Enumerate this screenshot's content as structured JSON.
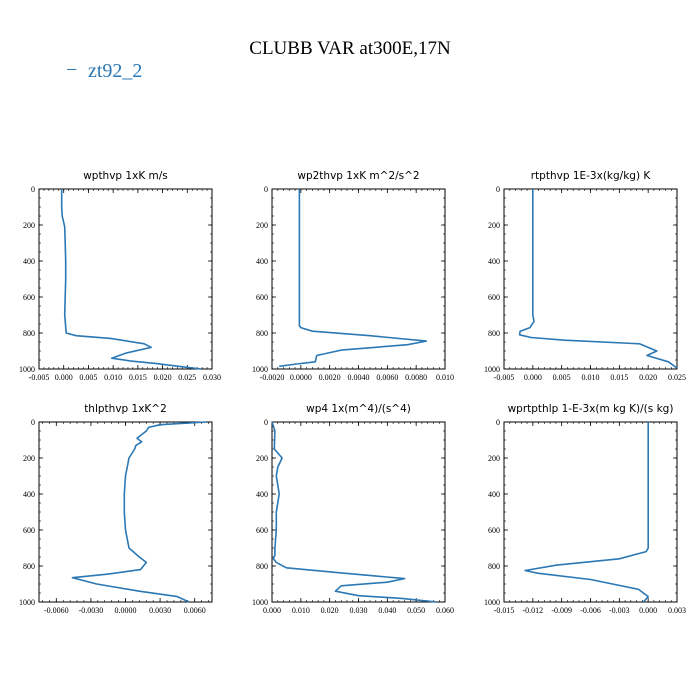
{
  "figure": {
    "title": "CLUBB VAR at300E,17N",
    "legend_label": "zt92_2",
    "legend_color": "#2b78b4"
  },
  "chart_data": [
    {
      "type": "line",
      "title": "wpthvp  1xK m/s",
      "xlim": [
        -0.005,
        0.03
      ],
      "ylim": [
        1000,
        0
      ],
      "xticks": [
        -0.005,
        0.0,
        0.005,
        0.01,
        0.015,
        0.02,
        0.025,
        0.03
      ],
      "xtick_labels": [
        "-0.005",
        "0.000",
        "0.005",
        "0.010",
        "0.015",
        "0.020",
        "0.025",
        "0.030"
      ],
      "yticks": [
        0,
        200,
        400,
        600,
        800,
        1000
      ],
      "ytick_labels": [
        "0",
        "200",
        "400",
        "600",
        "800",
        "1000"
      ],
      "series": [
        {
          "name": "zt92_2",
          "x": [
            -0.0004,
            -0.0004,
            -0.0003,
            0.0002,
            0.0003,
            0.0004,
            0.0004,
            0.0003,
            0.0002,
            0.0005,
            0.0025,
            0.0095,
            0.0163,
            0.0177,
            0.0128,
            0.0097,
            0.0134,
            0.0188,
            0.0232,
            0.0278
          ],
          "y": [
            0,
            100,
            150,
            210,
            300,
            400,
            500,
            600,
            700,
            800,
            815,
            830,
            860,
            880,
            910,
            940,
            955,
            970,
            985,
            1000
          ]
        }
      ]
    },
    {
      "type": "line",
      "title": "wp2thvp  1xK m^2/s^2",
      "xlim": [
        -0.002,
        0.01
      ],
      "ylim": [
        1000,
        0
      ],
      "xticks": [
        -0.002,
        0.0,
        0.002,
        0.004,
        0.006,
        0.008,
        0.01
      ],
      "xtick_labels": [
        "-0.0020",
        "0.0000",
        "0.0020",
        "0.0040",
        "0.0060",
        "0.0080",
        "0.010"
      ],
      "yticks": [
        0,
        200,
        400,
        600,
        800,
        1000
      ],
      "ytick_labels": [
        "0",
        "200",
        "400",
        "600",
        "800",
        "1000"
      ],
      "series": [
        {
          "name": "zt92_2",
          "x": [
            -0.0001,
            -0.0001,
            -0.0001,
            -0.0001,
            -0.0001,
            -0.0001,
            -0.0001,
            0.0,
            0.0008,
            0.0048,
            0.0087,
            0.0074,
            0.0028,
            0.0011,
            0.001,
            -0.0003,
            -0.0015
          ],
          "y": [
            0,
            200,
            400,
            600,
            700,
            740,
            760,
            770,
            790,
            815,
            845,
            865,
            895,
            925,
            960,
            972,
            985
          ]
        }
      ]
    },
    {
      "type": "line",
      "title": "rtpthvp  1E-3x(kg/kg) K",
      "xlim": [
        -0.005,
        0.025
      ],
      "ylim": [
        1000,
        0
      ],
      "xticks": [
        -0.005,
        0.0,
        0.005,
        0.01,
        0.015,
        0.02,
        0.025
      ],
      "xtick_labels": [
        "-0.005",
        "0.000",
        "0.005",
        "0.010",
        "0.015",
        "0.020",
        "0.025"
      ],
      "yticks": [
        0,
        200,
        400,
        600,
        800,
        1000
      ],
      "ytick_labels": [
        "0",
        "200",
        "400",
        "600",
        "800",
        "1000"
      ],
      "series": [
        {
          "name": "zt92_2",
          "x": [
            0.0,
            0.0,
            0.0,
            0.0,
            0.0,
            0.0002,
            -0.0005,
            -0.0022,
            -0.0023,
            -0.0003,
            0.0055,
            0.0185,
            0.0215,
            0.0198,
            0.0235,
            0.025
          ],
          "y": [
            0,
            200,
            400,
            600,
            700,
            735,
            770,
            790,
            810,
            825,
            840,
            860,
            900,
            925,
            960,
            995
          ]
        }
      ]
    },
    {
      "type": "line",
      "title": "thlpthvp  1xK^2",
      "xlim": [
        -0.0075,
        0.0075
      ],
      "ylim": [
        1000,
        0
      ],
      "xticks": [
        -0.006,
        -0.003,
        0.0,
        0.003,
        0.006
      ],
      "xtick_labels": [
        "-0.0060",
        "-0.0030",
        "0.0000",
        "0.0030",
        "0.0060"
      ],
      "yticks": [
        0,
        200,
        400,
        600,
        800,
        1000
      ],
      "ytick_labels": [
        "0",
        "200",
        "400",
        "600",
        "800",
        "1000"
      ],
      "series": [
        {
          "name": "zt92_2",
          "x": [
            0.007,
            0.003,
            0.002,
            0.0018,
            0.001,
            0.0014,
            0.0009,
            0.0008,
            0.0003,
            0.0,
            -0.0001,
            -0.0001,
            0.0,
            0.0003,
            0.0012,
            0.0018,
            0.0013,
            -0.0015,
            -0.0046,
            -0.0025,
            0.0012,
            0.0045,
            0.0055
          ],
          "y": [
            0,
            15,
            30,
            50,
            90,
            110,
            130,
            150,
            200,
            300,
            400,
            500,
            600,
            700,
            750,
            780,
            820,
            845,
            865,
            900,
            940,
            970,
            1000
          ]
        }
      ]
    },
    {
      "type": "line",
      "title": "wp4  1x(m^4)/(s^4)",
      "xlim": [
        0.0,
        0.06
      ],
      "ylim": [
        1000,
        0
      ],
      "xticks": [
        0.0,
        0.01,
        0.02,
        0.03,
        0.04,
        0.05,
        0.06
      ],
      "xtick_labels": [
        "0.000",
        "0.010",
        "0.020",
        "0.030",
        "0.040",
        "0.050",
        "0.060"
      ],
      "yticks": [
        0,
        200,
        400,
        600,
        800,
        1000
      ],
      "ytick_labels": [
        "0",
        "200",
        "400",
        "600",
        "800",
        "1000"
      ],
      "series": [
        {
          "name": "zt92_2",
          "x": [
            0.0,
            0.001,
            0.0008,
            0.0035,
            0.002,
            0.0015,
            0.0025,
            0.0015,
            0.0015,
            0.001,
            0.001,
            0.0005,
            0.0015,
            0.005,
            0.025,
            0.046,
            0.04,
            0.024,
            0.022,
            0.03,
            0.045,
            0.057
          ],
          "y": [
            0,
            50,
            150,
            200,
            250,
            300,
            400,
            500,
            600,
            700,
            740,
            760,
            780,
            810,
            840,
            870,
            890,
            910,
            940,
            965,
            980,
            1000
          ]
        }
      ]
    },
    {
      "type": "line",
      "title": "wprtpthlp  1-E-3x(m kg K)/(s kg)",
      "xlim": [
        -0.015,
        0.003
      ],
      "ylim": [
        1000,
        0
      ],
      "xticks": [
        -0.015,
        -0.012,
        -0.009,
        -0.006,
        -0.003,
        0.0,
        0.003
      ],
      "xtick_labels": [
        "-0.015",
        "-0.012",
        "-0.009",
        "-0.006",
        "-0.003",
        "0.000",
        "0.003"
      ],
      "yticks": [
        0,
        200,
        400,
        600,
        800,
        1000
      ],
      "ytick_labels": [
        "0",
        "200",
        "400",
        "600",
        "800",
        "1000"
      ],
      "series": [
        {
          "name": "zt92_2",
          "x": [
            0.0,
            0.0,
            0.0,
            0.0,
            0.0,
            -0.0002,
            -0.003,
            -0.0095,
            -0.0128,
            -0.0115,
            -0.006,
            -0.001,
            0.0,
            -0.0005
          ],
          "y": [
            0,
            200,
            400,
            600,
            700,
            720,
            760,
            795,
            825,
            840,
            875,
            930,
            970,
            1000
          ]
        }
      ]
    }
  ]
}
